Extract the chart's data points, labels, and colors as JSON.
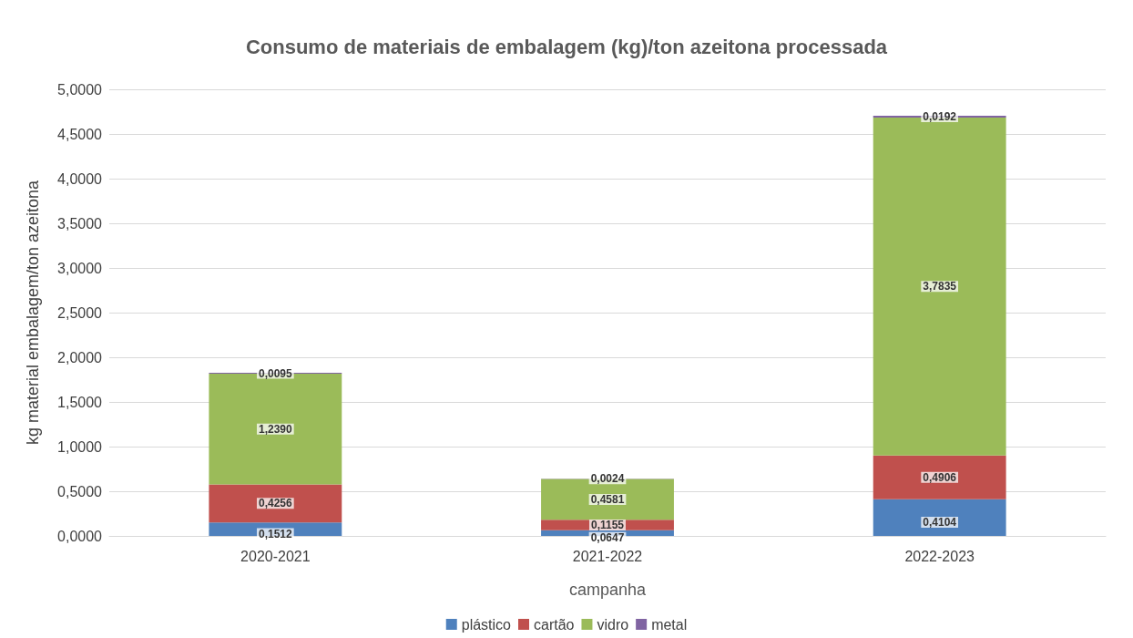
{
  "chart_data": {
    "type": "bar",
    "title": "Consumo de materiais de embalagem (kg)/ton azeitona processada",
    "xlabel": "campanha",
    "ylabel": "kg material embalagem/ton azeitona",
    "categories": [
      "2020-2021",
      "2021-2022",
      "2022-2023"
    ],
    "stacked": true,
    "series": [
      {
        "name": "plástico",
        "color": "#4f81bd",
        "values": [
          0.1512,
          0.0647,
          0.4104
        ],
        "value_labels": [
          "0,1512",
          "0,0647",
          "0,4104"
        ]
      },
      {
        "name": "cartão",
        "color": "#c0504d",
        "values": [
          0.4256,
          0.1155,
          0.4906
        ],
        "value_labels": [
          "0,4256",
          "0,1155",
          "0,4906"
        ]
      },
      {
        "name": "vidro",
        "color": "#9bbb59",
        "values": [
          1.239,
          0.4581,
          3.7835
        ],
        "value_labels": [
          "1,2390",
          "0,4581",
          "3,7835"
        ]
      },
      {
        "name": "metal",
        "color": "#8064a2",
        "values": [
          0.0095,
          0.0024,
          0.0192
        ],
        "value_labels": [
          "0,0095",
          "0,0024",
          "0,0192"
        ]
      }
    ],
    "ylim": [
      0,
      5
    ],
    "yticks": [
      {
        "value": 0,
        "label": "0,0000"
      },
      {
        "value": 0.5,
        "label": "0,5000"
      },
      {
        "value": 1,
        "label": "1,0000"
      },
      {
        "value": 1.5,
        "label": "1,5000"
      },
      {
        "value": 2,
        "label": "2,0000"
      },
      {
        "value": 2.5,
        "label": "2,5000"
      },
      {
        "value": 3,
        "label": "3,0000"
      },
      {
        "value": 3.5,
        "label": "3,5000"
      },
      {
        "value": 4,
        "label": "4,0000"
      },
      {
        "value": 4.5,
        "label": "4,5000"
      },
      {
        "value": 5,
        "label": "5,0000"
      }
    ],
    "grid": "y",
    "legend": "bottom"
  }
}
